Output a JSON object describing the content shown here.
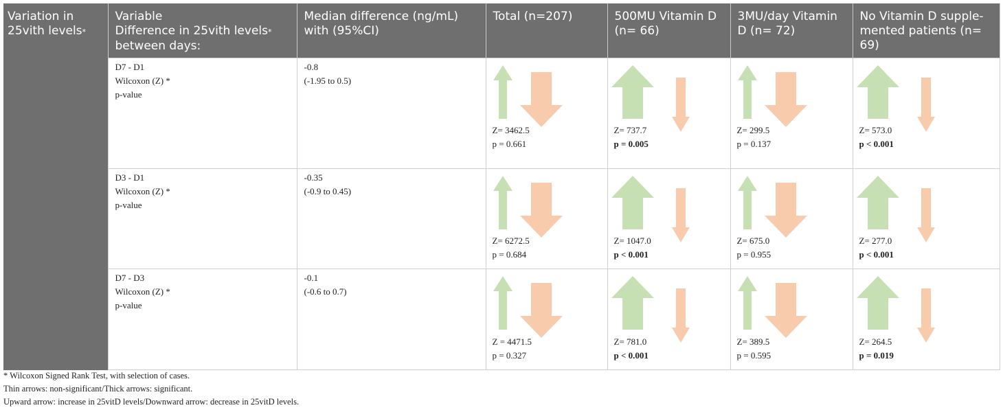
{
  "header": {
    "col0": "Variation in 25vith levels",
    "col0_star": "*",
    "col1_line1": "Variable",
    "col1_line2": "Difference in 25vith levels",
    "col1_star": "*",
    "col1_line3": "between days:",
    "col2": "Median difference (ng/mL) with (95%CI)",
    "col3": "Total (n=207)",
    "col4": "500MU Vitamin D (n= 66)",
    "col5": "3MU/day Vitamin D (n= 72)",
    "col6": "No Vitamin D supple-mented patients (n= 69)"
  },
  "rows": [
    {
      "comparison": "D7 - D1",
      "test": "Wilcoxon (Z) *",
      "p_label": "p-value",
      "median": "-0.8",
      "ci": "(-1.95 to 0.5)",
      "groups": [
        {
          "z": "Z= 3462.5",
          "p": "p = 0.661",
          "significant": false
        },
        {
          "z": "Z= 737.7",
          "p": "p = 0.005",
          "significant": true
        },
        {
          "z": "Z= 299.5",
          "p": "p = 0.137",
          "significant": false
        },
        {
          "z": "Z= 573.0",
          "p": "p < 0.001",
          "significant": true
        }
      ]
    },
    {
      "comparison": "D3 - D1",
      "test": "Wilcoxon (Z) *",
      "p_label": "p-value",
      "median": "-0.35",
      "ci": "(-0.9 to 0.45)",
      "groups": [
        {
          "z": "Z= 6272.5",
          "p": "p = 0.684",
          "significant": false
        },
        {
          "z": "Z= 1047.0",
          "p": "p < 0.001",
          "significant": true
        },
        {
          "z": "Z= 675.0",
          "p": "p = 0.955",
          "significant": false
        },
        {
          "z": "Z= 277.0",
          "p": "p < 0.001",
          "significant": true
        }
      ]
    },
    {
      "comparison": "D7 - D3",
      "test": "Wilcoxon (Z) *",
      "p_label": "p-value",
      "median": "-0.1",
      "ci": "(-0.6 to 0.7)",
      "groups": [
        {
          "z": "Z = 4471.5",
          "p": "p = 0.327",
          "significant": false
        },
        {
          "z": "Z= 781.0",
          "p": "p < 0.001",
          "significant": true
        },
        {
          "z": "Z= 389.5",
          "p": "p = 0.595",
          "significant": false
        },
        {
          "z": "Z= 264.5",
          "p": "p = 0.019",
          "significant": true
        }
      ]
    }
  ],
  "footnotes": {
    "note1": "* Wilcoxon Signed Rank Test, with selection of cases.",
    "note2": "Thin arrows: non-significant/Thick arrows: significant.",
    "note3": "Upward arrow: increase in 25vitD levels/Downward arrow: decrease in 25vitD levels."
  },
  "colors": {
    "up_arrow": "#c6e0b4",
    "down_arrow": "#f8cbad",
    "header_bg": "#6f6f6f"
  }
}
